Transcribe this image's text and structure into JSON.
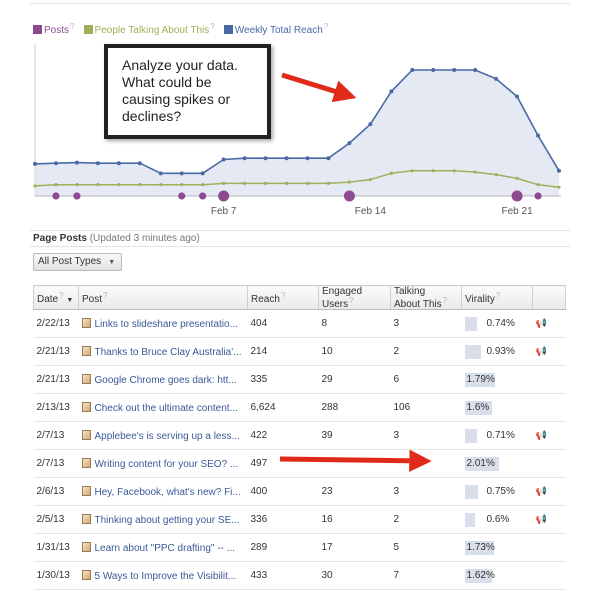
{
  "colors": {
    "posts": "#8e4a90",
    "talking": "#9fb05a",
    "reach": "#4a6aa5",
    "reach_fill": "#e5e9f4",
    "arrow": "#e02b1a",
    "link": "#3b5998"
  },
  "legend": [
    {
      "label": "Posts",
      "color": "#8e4a90"
    },
    {
      "label": "People Talking About This",
      "color": "#9fb05a"
    },
    {
      "label": "Weekly Total Reach",
      "color": "#4a6aa5"
    }
  ],
  "help_mark": "?",
  "callout": {
    "text": "Analyze your data. What could be causing spikes or declines?"
  },
  "chart_data": {
    "type": "line",
    "x_tick_labels": [
      "Feb 7",
      "Feb 14",
      "Feb 21"
    ],
    "series": [
      {
        "name": "Weekly Total Reach",
        "relative_values": [
          0.255,
          0.26,
          0.265,
          0.26,
          0.26,
          0.26,
          0.18,
          0.18,
          0.18,
          0.29,
          0.3,
          0.3,
          0.3,
          0.3,
          0.3,
          0.42,
          0.57,
          0.83,
          1.0,
          1.0,
          1.0,
          1.0,
          0.93,
          0.79,
          0.48,
          0.2
        ]
      },
      {
        "name": "People Talking About This",
        "relative_values": [
          0.08,
          0.09,
          0.09,
          0.09,
          0.09,
          0.09,
          0.09,
          0.09,
          0.09,
          0.1,
          0.1,
          0.1,
          0.1,
          0.1,
          0.1,
          0.11,
          0.13,
          0.18,
          0.2,
          0.2,
          0.2,
          0.19,
          0.17,
          0.14,
          0.09,
          0.07
        ]
      },
      {
        "name": "Posts",
        "marker_indices": [
          1,
          2,
          7,
          8,
          9,
          15,
          23,
          24
        ],
        "large_marker_indices": [
          9,
          15,
          23
        ]
      }
    ]
  },
  "page_posts": {
    "title": "Page Posts",
    "updated": "(Updated 3 minutes ago)",
    "filter_label": "All Post Types",
    "columns": {
      "date": "Date",
      "post": "Post",
      "reach": "Reach",
      "engaged_line1": "Engaged",
      "engaged_line2": "Users",
      "talking_line1": "Talking",
      "talking_line2": "About This",
      "virality": "Virality"
    },
    "rows": [
      {
        "date": "2/22/13",
        "post": "Links to slideshare presentatio...",
        "reach": "404",
        "engaged": "8",
        "talking": "3",
        "virality": "0.74%",
        "virality_value": 0.74
      },
      {
        "date": "2/21/13",
        "post": "Thanks to Bruce Clay Australia'...",
        "reach": "214",
        "engaged": "10",
        "talking": "2",
        "virality": "0.93%",
        "virality_value": 0.93
      },
      {
        "date": "2/21/13",
        "post": "Google Chrome goes dark: htt...",
        "reach": "335",
        "engaged": "29",
        "talking": "6",
        "virality": "1.79%",
        "virality_value": 1.79
      },
      {
        "date": "2/13/13",
        "post": "Check out the ultimate content...",
        "reach": "6,624",
        "engaged": "288",
        "talking": "106",
        "virality": "1.6%",
        "virality_value": 1.6
      },
      {
        "date": "2/7/13",
        "post": "Applebee's is serving up a less...",
        "reach": "422",
        "engaged": "39",
        "talking": "3",
        "virality": "0.71%",
        "virality_value": 0.71
      },
      {
        "date": "2/7/13",
        "post": "Writing content for your SEO? ...",
        "reach": "497",
        "engaged": "",
        "talking": "",
        "virality": "2.01%",
        "virality_value": 2.01
      },
      {
        "date": "2/6/13",
        "post": "Hey, Facebook, what's new? Fi...",
        "reach": "400",
        "engaged": "23",
        "talking": "3",
        "virality": "0.75%",
        "virality_value": 0.75
      },
      {
        "date": "2/5/13",
        "post": "Thinking about getting your SE...",
        "reach": "336",
        "engaged": "16",
        "talking": "2",
        "virality": "0.6%",
        "virality_value": 0.6
      },
      {
        "date": "1/31/13",
        "post": "Learn about \"PPC drafting\" -- ...",
        "reach": "289",
        "engaged": "17",
        "talking": "5",
        "virality": "1.73%",
        "virality_value": 1.73
      },
      {
        "date": "1/30/13",
        "post": "5 Ways to Improve the Visibilit...",
        "reach": "433",
        "engaged": "30",
        "talking": "7",
        "virality": "1.62%",
        "virality_value": 1.62
      }
    ]
  }
}
